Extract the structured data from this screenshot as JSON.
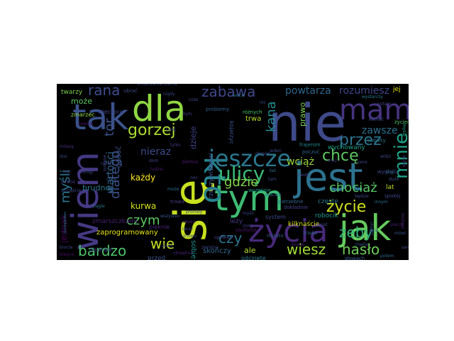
{
  "wordcloud": {
    "background": "#000000",
    "colormap": "viridis",
    "words": [
      {
        "text": "nie",
        "color": "#3e4a89"
      },
      {
        "text": "się",
        "color": "#c8e020"
      },
      {
        "text": "wiem",
        "color": "#443983"
      },
      {
        "text": "tak",
        "color": "#3b528b"
      },
      {
        "text": "jest",
        "color": "#2c728e"
      },
      {
        "text": "dla",
        "color": "#90d743"
      },
      {
        "text": "jak",
        "color": "#65cb5e"
      },
      {
        "text": "tym",
        "color": "#3dbc74"
      },
      {
        "text": "kto",
        "color": "#25838e"
      },
      {
        "text": "mam",
        "color": "#46337f"
      },
      {
        "text": "życia",
        "color": "#472a7a"
      },
      {
        "text": "jeszcze",
        "color": "#2a788e"
      },
      {
        "text": "ulicy",
        "color": "#3aba76"
      },
      {
        "text": "mnie",
        "color": "#1fa187"
      },
      {
        "text": "gorzej",
        "color": "#addc30"
      },
      {
        "text": "zabawa",
        "color": "#3f4889"
      },
      {
        "text": "chcę",
        "color": "#5ec962"
      },
      {
        "text": "przez",
        "color": "#2c738e"
      },
      {
        "text": "żeby",
        "color": "#2fb47c"
      },
      {
        "text": "gdzie",
        "color": "#84d44b"
      },
      {
        "text": "życie",
        "color": "#cde11d"
      },
      {
        "text": "chociaż",
        "color": "#58c765"
      },
      {
        "text": "rana",
        "color": "#3e4c8a"
      },
      {
        "text": "bardzo",
        "color": "#4ec36b"
      },
      {
        "text": "wiesz",
        "color": "#a0da39"
      },
      {
        "text": "hasło",
        "color": "#6ccd5a"
      },
      {
        "text": "czy",
        "color": "#2c718e"
      },
      {
        "text": "wie",
        "color": "#c2df23"
      },
      {
        "text": "myśli",
        "color": "#2b758e"
      },
      {
        "text": "dlatego",
        "color": "#3b528b"
      },
      {
        "text": "czym",
        "color": "#5cc863"
      },
      {
        "text": "kana",
        "color": "#23898e"
      },
      {
        "text": "rozumiesz",
        "color": "#3f4788"
      },
      {
        "text": "powtarza",
        "color": "#31678e"
      },
      {
        "text": "wciąż",
        "color": "#9bd93c"
      },
      {
        "text": "zawsze",
        "color": "#2d708e"
      },
      {
        "text": "nieraz",
        "color": "#3e4a89"
      },
      {
        "text": "wartości",
        "color": "#31668e"
      },
      {
        "text": "tor",
        "color": "#3b528b"
      },
      {
        "text": "kurwa",
        "color": "#d2e21b"
      },
      {
        "text": "każdy",
        "color": "#fde725"
      },
      {
        "text": "jednak",
        "color": "#440154"
      },
      {
        "text": "brudne",
        "color": "#2a788e"
      },
      {
        "text": "może",
        "color": "#5ec962"
      },
      {
        "text": "twarzy",
        "color": "#7ad151"
      },
      {
        "text": "zaprogramowany",
        "color": "#e5e419"
      },
      {
        "text": "zmarszczkami",
        "color": "#482173"
      },
      {
        "text": "ale",
        "color": "#b5de2b"
      },
      {
        "text": "skończy",
        "color": "#31688e"
      },
      {
        "text": "sobie",
        "color": "#21918c"
      },
      {
        "text": "prawo",
        "color": "#7ad151"
      },
      {
        "text": "trwa",
        "color": "#b8de29"
      },
      {
        "text": "kilknaście",
        "color": "#d8e219"
      },
      {
        "text": "dzieje",
        "color": "#404387"
      },
      {
        "text": "gadać",
        "color": "#3b528b"
      },
      {
        "text": "lat",
        "color": "#c0df25"
      },
      {
        "text": "jej",
        "color": "#e7e419"
      },
      {
        "text": "częste",
        "color": "#2a788e"
      },
      {
        "text": "robocik",
        "color": "#1f968b"
      },
      {
        "text": "wychowany",
        "color": "#1f9e89"
      },
      {
        "text": "rzeczywistości",
        "color": "#3b528b"
      },
      {
        "text": "zmarzec",
        "color": "#90d743"
      },
      {
        "text": "leży",
        "color": "#443983"
      },
      {
        "text": "wieczora",
        "color": "#404688"
      },
      {
        "text": "ubrać",
        "color": "#3e4a89"
      },
      {
        "text": "przed",
        "color": "#3b528b"
      },
      {
        "text": "odcinęte",
        "color": "#2a788e"
      },
      {
        "text": "pięknie",
        "color": "#482878"
      },
      {
        "text": "zniszczenia czerca",
        "color": "#3e4989"
      },
      {
        "text": "potrzebne",
        "color": "#31688e"
      },
      {
        "text": "kojarzyc",
        "color": "#3b528b"
      },
      {
        "text": "system",
        "color": "#3e4989"
      },
      {
        "text": "ziemia",
        "color": "#481b6d"
      },
      {
        "text": "trawa",
        "color": "#433e85"
      },
      {
        "text": "miasto",
        "color": "#38598c"
      },
      {
        "text": "proroby",
        "color": "#3f4788"
      },
      {
        "text": "różnych",
        "color": "#4ac16d"
      },
      {
        "text": "problemy",
        "color": "#345e8d"
      },
      {
        "text": "zwrotne",
        "color": "#3e4a89"
      },
      {
        "text": "zaufanie",
        "color": "#481467"
      },
      {
        "text": "obieram",
        "color": "#3e4989"
      },
      {
        "text": "frajerom",
        "color": "#25858e"
      },
      {
        "text": "poczuć",
        "color": "#31678e"
      },
      {
        "text": "kobiety",
        "color": "#2a788e"
      },
      {
        "text": "wygląda",
        "color": "#3f4788"
      },
      {
        "text": "pracuje",
        "color": "#2e6e8e"
      },
      {
        "text": "wcześnie",
        "color": "#1e9c89"
      },
      {
        "text": "opowiem",
        "color": "#3e4a89"
      },
      {
        "text": "inny",
        "color": "#433e85"
      },
      {
        "text": "dokładnie",
        "color": "#414487"
      },
      {
        "text": "słowach",
        "color": "#39568c"
      },
      {
        "text": "obojętnie",
        "color": "#482475"
      },
      {
        "text": "oraz",
        "color": "#453882"
      },
      {
        "text": "daj",
        "color": "#31678e"
      },
      {
        "text": "pora",
        "color": "#3e4a89"
      },
      {
        "text": "dużo",
        "color": "#3b518b"
      },
      {
        "text": "możesz",
        "color": "#482677"
      },
      {
        "text": "życiem",
        "color": "#4ec36b"
      },
      {
        "text": "widzi",
        "color": "#3e4a89"
      },
      {
        "text": "spokój",
        "color": "#3f4889"
      },
      {
        "text": "innym",
        "color": "#2d708e"
      },
      {
        "text": "chodzi",
        "color": "#3a548c"
      },
      {
        "text": "mówią",
        "color": "#472d7b"
      },
      {
        "text": "stoi",
        "color": "#3e4c8a"
      },
      {
        "text": "zawiedziony",
        "color": "#2c728e"
      },
      {
        "text": "biegnę",
        "color": "#470e61"
      },
      {
        "text": "wolność",
        "color": "#3e4989"
      },
      {
        "text": "biorze",
        "color": "#3e4a89"
      },
      {
        "text": "mój",
        "color": "#404688"
      },
      {
        "text": "powód",
        "color": "#433d84"
      },
      {
        "text": "chce",
        "color": "#38588c"
      },
      {
        "text": "szczęście",
        "color": "#3e4989"
      },
      {
        "text": "wystarczy",
        "color": "#2a778e"
      },
      {
        "text": "pytam",
        "color": "#414287"
      },
      {
        "text": "myślę",
        "color": "#22a785"
      },
      {
        "text": "kochać",
        "color": "#3d4e8a"
      },
      {
        "text": "widzę",
        "color": "#472c7a"
      },
      {
        "text": "płacze",
        "color": "#481c6e"
      },
      {
        "text": "mówi",
        "color": "#3b528b"
      },
      {
        "text": "sam",
        "color": "#3e4a89"
      },
      {
        "text": "potem",
        "color": "#2f6c8e"
      },
      {
        "text": "nigdy",
        "color": "#3e4989"
      },
      {
        "text": "czas",
        "color": "#3f4788"
      },
      {
        "text": "serce",
        "color": "#2a768e"
      },
      {
        "text": "nic",
        "color": "#3e4c8a"
      },
      {
        "text": "było",
        "color": "#453581"
      },
      {
        "text": "tutaj",
        "color": "#3f4788"
      },
      {
        "text": "ludzie",
        "color": "#481a6c"
      },
      {
        "text": "może",
        "color": "#2c738e"
      },
      {
        "text": "wszystko",
        "color": "#38598c"
      },
      {
        "text": "zaraz",
        "color": "#3e4989"
      },
      {
        "text": "znowu",
        "color": "#3e4a89"
      },
      {
        "text": "też",
        "color": "#2e6e8e"
      },
      {
        "text": "tam",
        "color": "#3f4889"
      },
      {
        "text": "jeden",
        "color": "#3e4a89"
      },
      {
        "text": "dzisiaj",
        "color": "#482878"
      },
      {
        "text": "świat",
        "color": "#3e4989"
      },
      {
        "text": "trzeba",
        "color": "#31678e"
      },
      {
        "text": "będzie",
        "color": "#3e4a89"
      },
      {
        "text": "chwila",
        "color": "#3b528b"
      },
      {
        "text": "zawsze",
        "color": "#481769"
      },
      {
        "text": "drogi",
        "color": "#3e4a89"
      },
      {
        "text": "ciągle",
        "color": "#2b758e"
      },
      {
        "text": "razem",
        "color": "#3e4989"
      },
      {
        "text": "dom",
        "color": "#3f4788"
      },
      {
        "text": "tylko",
        "color": "#453781"
      },
      {
        "text": "kiedy",
        "color": "#3e4a89"
      },
      {
        "text": "ręce",
        "color": "#3b528b"
      },
      {
        "text": "głowie",
        "color": "#3e4989"
      },
      {
        "text": "myśli",
        "color": "#3e4a89"
      },
      {
        "text": "słowa",
        "color": "#482475"
      },
      {
        "text": "noc",
        "color": "#3e4989"
      },
      {
        "text": "dzień",
        "color": "#3e4a89"
      }
    ]
  }
}
